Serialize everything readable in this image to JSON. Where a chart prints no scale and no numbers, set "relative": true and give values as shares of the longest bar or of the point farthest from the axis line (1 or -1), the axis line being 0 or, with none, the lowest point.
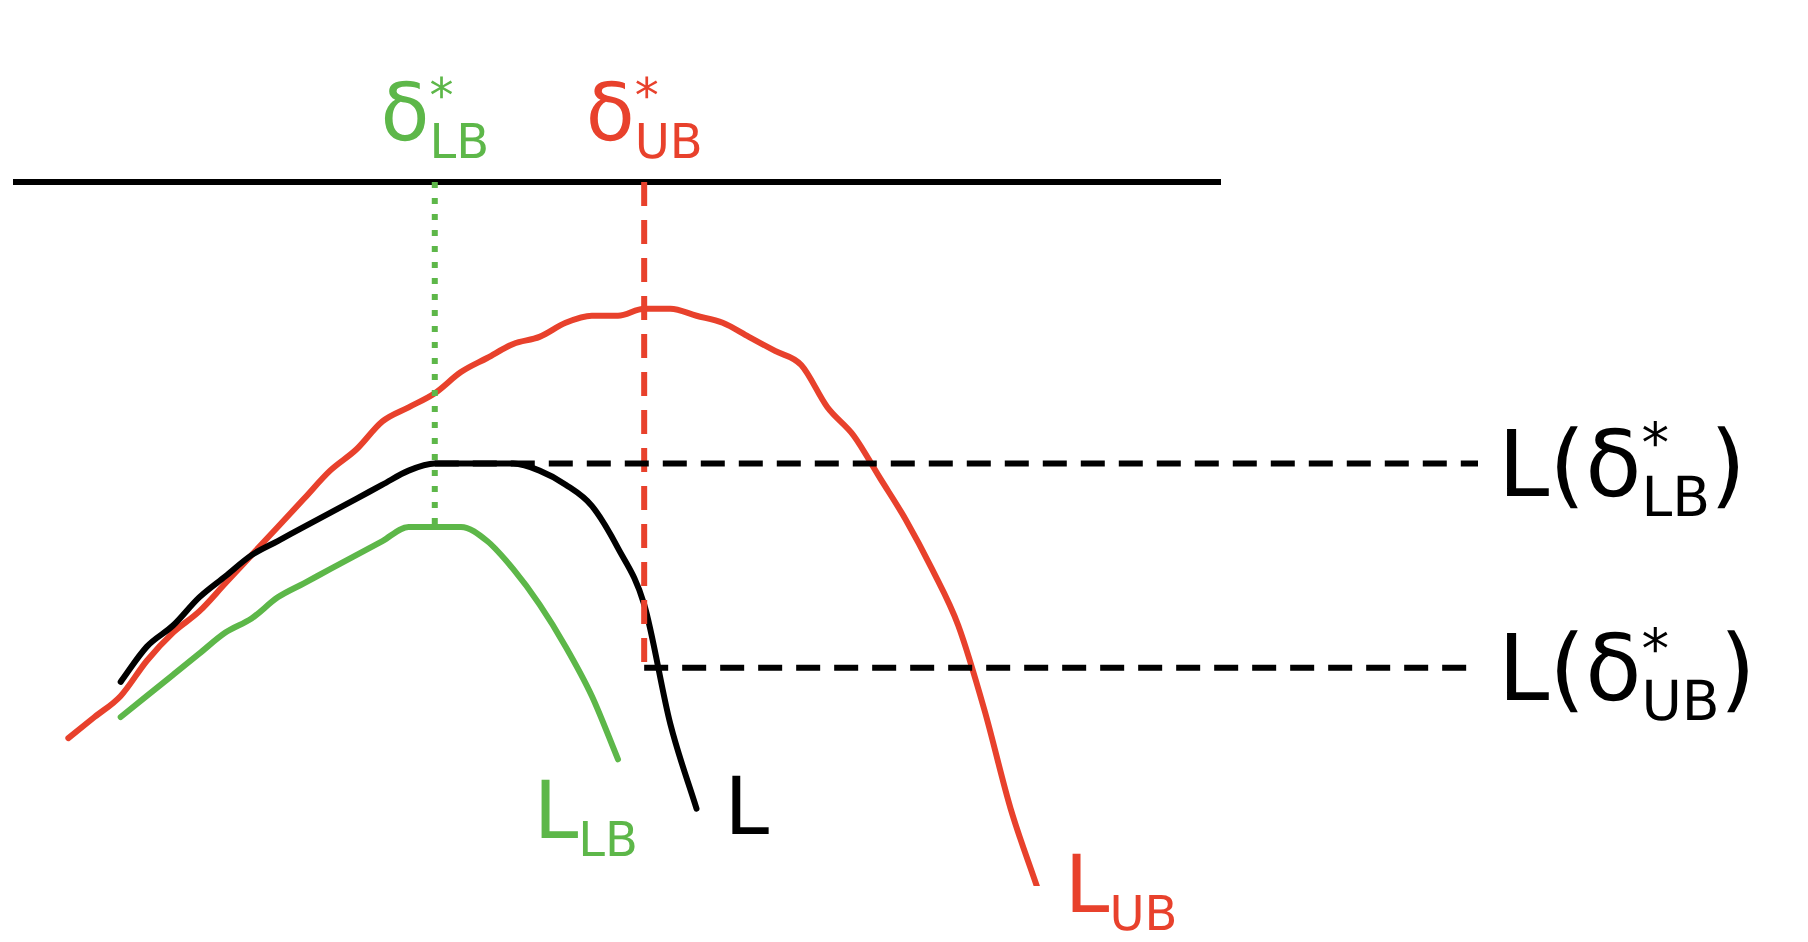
{
  "chart_data": {
    "type": "line",
    "relative": true,
    "marker": "none",
    "categories": [
      null,
      null,
      null,
      null,
      null,
      null,
      null,
      null,
      null,
      null,
      null,
      null,
      null,
      null,
      null,
      null,
      "δ$^{*}$$_{LB}$",
      null,
      null,
      null,
      null,
      null,
      null,
      null,
      "δ$^{*}$$_{UB}$",
      null,
      null,
      null,
      null,
      null,
      null,
      null,
      null,
      null,
      null,
      null,
      null,
      null,
      null,
      null,
      null,
      null,
      null,
      null,
      null,
      null,
      null
    ],
    "series": [
      {
        "name": "L$_{LB}$",
        "color": "#5db749",
        "values": [
          null,
          null,
          null,
          null,
          -0.76,
          -0.73,
          -0.7,
          -0.67,
          -0.64,
          -0.62,
          -0.59,
          -0.57,
          -0.55,
          -0.53,
          -0.51,
          -0.49,
          -0.49,
          -0.49,
          -0.51,
          -0.55,
          -0.6,
          -0.66,
          -0.73,
          -0.82,
          null,
          null,
          null,
          null,
          null,
          null,
          null,
          null,
          null,
          null,
          null,
          null,
          null,
          null,
          null,
          null,
          null,
          null,
          null,
          null,
          null,
          null,
          null
        ]
      },
      {
        "name": "L",
        "color": "#000000",
        "values": [
          null,
          null,
          null,
          null,
          -0.71,
          -0.66,
          -0.63,
          -0.59,
          -0.56,
          -0.53,
          -0.51,
          -0.49,
          -0.47,
          -0.45,
          -0.43,
          -0.41,
          -0.4,
          -0.4,
          -0.4,
          -0.4,
          -0.41,
          -0.43,
          -0.46,
          -0.52,
          -0.6,
          -0.77,
          -0.89,
          null,
          null,
          null,
          null,
          null,
          null,
          null,
          null,
          null,
          null,
          null,
          null,
          null,
          null,
          null,
          null,
          null,
          null,
          null,
          null
        ]
      },
      {
        "name": "L$_{UB}$",
        "color": "#e8412c",
        "values": [
          null,
          null,
          -0.79,
          -0.76,
          -0.73,
          -0.68,
          -0.64,
          -0.61,
          -0.57,
          -0.53,
          -0.49,
          -0.45,
          -0.41,
          -0.38,
          -0.34,
          -0.32,
          -0.3,
          -0.27,
          -0.25,
          -0.23,
          -0.22,
          -0.2,
          -0.19,
          -0.19,
          -0.18,
          -0.18,
          -0.19,
          -0.2,
          -0.22,
          -0.24,
          -0.26,
          -0.32,
          -0.36,
          -0.42,
          -0.48,
          -0.55,
          -0.63,
          -0.75,
          -0.89,
          -1,
          null,
          null,
          null,
          null,
          null,
          null,
          null
        ]
      }
    ],
    "ref_lines": [
      {
        "axis": "x",
        "value": "δ$^{*}$$_{LB}$",
        "color": "#5db749",
        "line_style": "dotted"
      },
      {
        "axis": "x",
        "value": "δ$^{*}$$_{UB}$",
        "color": "#e8412c",
        "line_style": "dashed"
      },
      {
        "axis": "y",
        "value": -0.4,
        "label": "L(δ$^{*}$$_{LB}$)",
        "color": "#000000",
        "line_style": "dashed"
      },
      {
        "axis": "y",
        "value": -0.69,
        "label": "L(δ$^{*}$$_{UB}$)",
        "color": "#000000",
        "line_style": "dashed"
      }
    ]
  }
}
